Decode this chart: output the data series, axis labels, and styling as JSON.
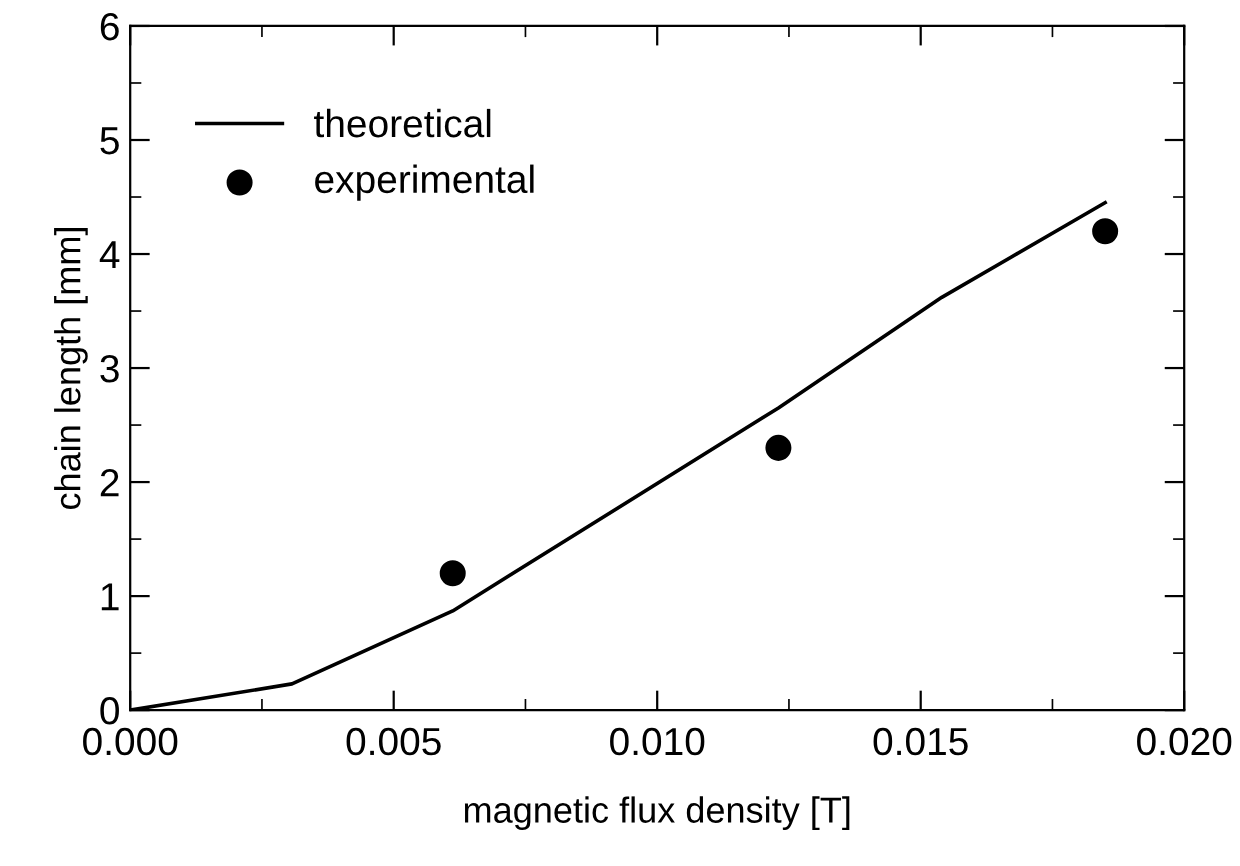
{
  "chart_data": {
    "type": "line",
    "xlabel": "magnetic flux density [T]",
    "ylabel": "chain length [mm]",
    "xlim": [
      0,
      0.02
    ],
    "ylim": [
      0,
      6
    ],
    "xticks": [
      {
        "value": 0,
        "label": "0.000"
      },
      {
        "value": 0.005,
        "label": "0.005"
      },
      {
        "value": 0.01,
        "label": "0.010"
      },
      {
        "value": 0.015,
        "label": "0.015"
      },
      {
        "value": 0.02,
        "label": "0.020"
      }
    ],
    "yticks": [
      0,
      1,
      2,
      3,
      4,
      5,
      6
    ],
    "grid": false,
    "legend": "top left",
    "series": [
      {
        "name": "theoretical",
        "color": "#000000",
        "marker": "none",
        "line_style": "solid",
        "x": [
          0,
          0.00307,
          0.00612,
          0.0123,
          0.0154,
          0.0185
        ],
        "values": [
          0,
          0.23,
          0.87,
          2.65,
          3.62,
          4.45
        ]
      },
      {
        "name": "experimental",
        "type": "scatter",
        "color": "#000000",
        "marker": "circle",
        "x": [
          0.00612,
          0.0123,
          0.0185
        ],
        "values": [
          1.2,
          2.3,
          4.2
        ]
      }
    ]
  }
}
